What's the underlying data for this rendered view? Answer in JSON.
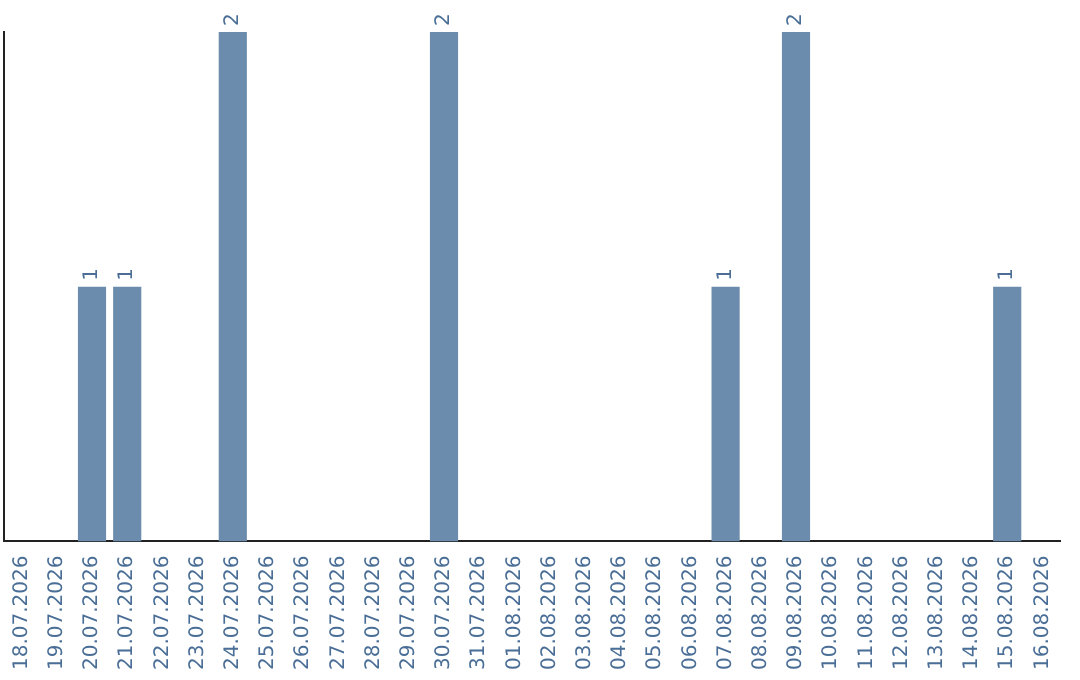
{
  "chart_data": {
    "type": "bar",
    "categories": [
      "18.07.2026",
      "19.07.2026",
      "20.07.2026",
      "21.07.2026",
      "22.07.2026",
      "23.07.2026",
      "24.07.2026",
      "25.07.2026",
      "26.07.2026",
      "27.07.2026",
      "28.07.2026",
      "29.07.2026",
      "30.07.2026",
      "31.07.2026",
      "01.08.2026",
      "02.08.2026",
      "03.08.2026",
      "04.08.2026",
      "05.08.2026",
      "06.08.2026",
      "07.08.2026",
      "08.08.2026",
      "09.08.2026",
      "10.08.2026",
      "11.08.2026",
      "12.08.2026",
      "13.08.2026",
      "14.08.2026",
      "15.08.2026",
      "16.08.2026"
    ],
    "values": [
      null,
      null,
      1,
      1,
      null,
      null,
      2,
      null,
      null,
      null,
      null,
      null,
      2,
      null,
      null,
      null,
      null,
      null,
      null,
      null,
      1,
      null,
      2,
      null,
      null,
      null,
      null,
      null,
      1,
      null
    ],
    "color": "#6b8cac",
    "data_labels": true,
    "grid": false,
    "legend": false,
    "tick_labels": "x"
  }
}
